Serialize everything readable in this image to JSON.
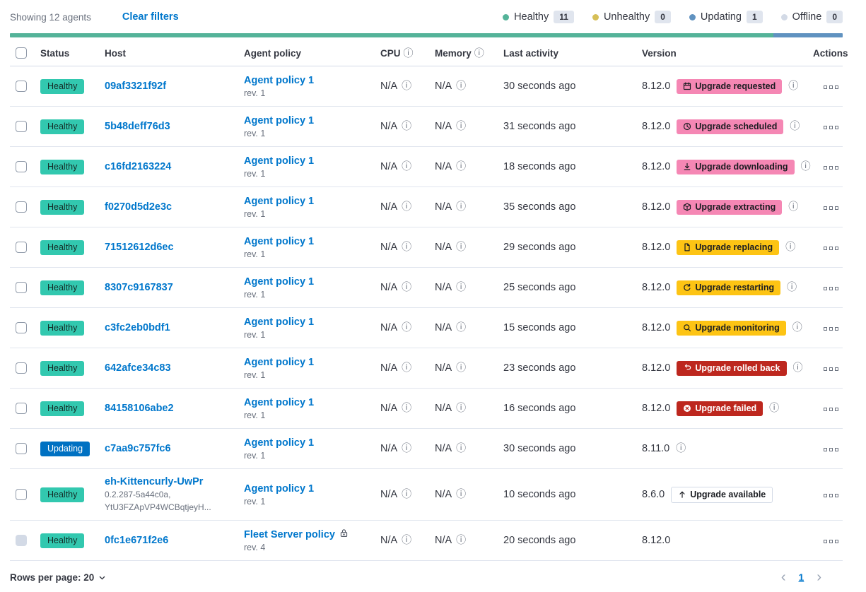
{
  "topbar": {
    "showing": "Showing 12 agents",
    "clear_filters": "Clear filters",
    "legend": [
      {
        "label": "Healthy",
        "count": "11",
        "color": "#54B399"
      },
      {
        "label": "Unhealthy",
        "count": "0",
        "color": "#D6BF57"
      },
      {
        "label": "Updating",
        "count": "1",
        "color": "#6092C0"
      },
      {
        "label": "Offline",
        "count": "0",
        "color": "#D3DAE6"
      }
    ]
  },
  "progress": {
    "segments": [
      {
        "name": "healthy",
        "color": "#54B399",
        "pct": 91.7
      },
      {
        "name": "updating",
        "color": "#6092C0",
        "pct": 8.3
      }
    ]
  },
  "table": {
    "columns": [
      {
        "label": "",
        "name": "select-all"
      },
      {
        "label": "Status",
        "name": "status"
      },
      {
        "label": "Host",
        "name": "host"
      },
      {
        "label": "Agent policy",
        "name": "agent-policy"
      },
      {
        "label": "CPU",
        "name": "cpu",
        "info": true
      },
      {
        "label": "Memory",
        "name": "memory",
        "info": true
      },
      {
        "label": "Last activity",
        "name": "last-activity"
      },
      {
        "label": "Version",
        "name": "version"
      },
      {
        "label": "Actions",
        "name": "actions",
        "align": "right"
      }
    ],
    "rows": [
      {
        "checkbox": {
          "disabled": false
        },
        "status": {
          "label": "Healthy",
          "style": "healthy"
        },
        "host": {
          "text": "09af3321f92f",
          "sub": []
        },
        "policy": {
          "name": "Agent policy 1",
          "rev": "rev. 1",
          "lock": false
        },
        "cpu": "N/A",
        "memory": "N/A",
        "last_activity": "30 seconds ago",
        "version": "8.12.0",
        "upgrade": {
          "label": "Upgrade requested",
          "icon": "calendar-icon",
          "style": "pink"
        },
        "version_info": true
      },
      {
        "checkbox": {
          "disabled": false
        },
        "status": {
          "label": "Healthy",
          "style": "healthy"
        },
        "host": {
          "text": "5b48deff76d3",
          "sub": []
        },
        "policy": {
          "name": "Agent policy 1",
          "rev": "rev. 1",
          "lock": false
        },
        "cpu": "N/A",
        "memory": "N/A",
        "last_activity": "31 seconds ago",
        "version": "8.12.0",
        "upgrade": {
          "label": "Upgrade scheduled",
          "icon": "clock-icon",
          "style": "pink"
        },
        "version_info": true
      },
      {
        "checkbox": {
          "disabled": false
        },
        "status": {
          "label": "Healthy",
          "style": "healthy"
        },
        "host": {
          "text": "c16fd2163224",
          "sub": []
        },
        "policy": {
          "name": "Agent policy 1",
          "rev": "rev. 1",
          "lock": false
        },
        "cpu": "N/A",
        "memory": "N/A",
        "last_activity": "18 seconds ago",
        "version": "8.12.0",
        "upgrade": {
          "label": "Upgrade downloading",
          "icon": "download-icon",
          "style": "pink"
        },
        "version_info": true
      },
      {
        "checkbox": {
          "disabled": false
        },
        "status": {
          "label": "Healthy",
          "style": "healthy"
        },
        "host": {
          "text": "f0270d5d2e3c",
          "sub": []
        },
        "policy": {
          "name": "Agent policy 1",
          "rev": "rev. 1",
          "lock": false
        },
        "cpu": "N/A",
        "memory": "N/A",
        "last_activity": "35 seconds ago",
        "version": "8.12.0",
        "upgrade": {
          "label": "Upgrade extracting",
          "icon": "package-icon",
          "style": "pink"
        },
        "version_info": true
      },
      {
        "checkbox": {
          "disabled": false
        },
        "status": {
          "label": "Healthy",
          "style": "healthy"
        },
        "host": {
          "text": "71512612d6ec",
          "sub": []
        },
        "policy": {
          "name": "Agent policy 1",
          "rev": "rev. 1",
          "lock": false
        },
        "cpu": "N/A",
        "memory": "N/A",
        "last_activity": "29 seconds ago",
        "version": "8.12.0",
        "upgrade": {
          "label": "Upgrade replacing",
          "icon": "document-icon",
          "style": "yellow"
        },
        "version_info": true
      },
      {
        "checkbox": {
          "disabled": false
        },
        "status": {
          "label": "Healthy",
          "style": "healthy"
        },
        "host": {
          "text": "8307c9167837",
          "sub": []
        },
        "policy": {
          "name": "Agent policy 1",
          "rev": "rev. 1",
          "lock": false
        },
        "cpu": "N/A",
        "memory": "N/A",
        "last_activity": "25 seconds ago",
        "version": "8.12.0",
        "upgrade": {
          "label": "Upgrade restarting",
          "icon": "refresh-icon",
          "style": "yellow"
        },
        "version_info": true
      },
      {
        "checkbox": {
          "disabled": false
        },
        "status": {
          "label": "Healthy",
          "style": "healthy"
        },
        "host": {
          "text": "c3fc2eb0bdf1",
          "sub": []
        },
        "policy": {
          "name": "Agent policy 1",
          "rev": "rev. 1",
          "lock": false
        },
        "cpu": "N/A",
        "memory": "N/A",
        "last_activity": "15 seconds ago",
        "version": "8.12.0",
        "upgrade": {
          "label": "Upgrade monitoring",
          "icon": "monitor-icon",
          "style": "yellow"
        },
        "version_info": true
      },
      {
        "checkbox": {
          "disabled": false
        },
        "status": {
          "label": "Healthy",
          "style": "healthy"
        },
        "host": {
          "text": "642afce34c83",
          "sub": []
        },
        "policy": {
          "name": "Agent policy 1",
          "rev": "rev. 1",
          "lock": false
        },
        "cpu": "N/A",
        "memory": "N/A",
        "last_activity": "23 seconds ago",
        "version": "8.12.0",
        "upgrade": {
          "label": "Upgrade rolled back",
          "icon": "rollback-icon",
          "style": "red"
        },
        "version_info": true
      },
      {
        "checkbox": {
          "disabled": false
        },
        "status": {
          "label": "Healthy",
          "style": "healthy"
        },
        "host": {
          "text": "84158106abe2",
          "sub": []
        },
        "policy": {
          "name": "Agent policy 1",
          "rev": "rev. 1",
          "lock": false
        },
        "cpu": "N/A",
        "memory": "N/A",
        "last_activity": "16 seconds ago",
        "version": "8.12.0",
        "upgrade": {
          "label": "Upgrade failed",
          "icon": "cross-circle-icon",
          "style": "red"
        },
        "version_info": true
      },
      {
        "checkbox": {
          "disabled": false
        },
        "status": {
          "label": "Updating",
          "style": "updating"
        },
        "host": {
          "text": "c7aa9c757fc6",
          "sub": []
        },
        "policy": {
          "name": "Agent policy 1",
          "rev": "rev. 1",
          "lock": false
        },
        "cpu": "N/A",
        "memory": "N/A",
        "last_activity": "30 seconds ago",
        "version": "8.11.0",
        "upgrade": null,
        "version_info": true
      },
      {
        "checkbox": {
          "disabled": false
        },
        "status": {
          "label": "Healthy",
          "style": "healthy"
        },
        "host": {
          "text": "eh-Kittencurly-UwPr",
          "sub": [
            "0.2.287-5a44c0a,",
            "YtU3FZApVP4WCBqtjeyH..."
          ]
        },
        "policy": {
          "name": "Agent policy 1",
          "rev": "rev. 1",
          "lock": false
        },
        "cpu": "N/A",
        "memory": "N/A",
        "last_activity": "10 seconds ago",
        "version": "8.6.0",
        "upgrade": {
          "label": "Upgrade available",
          "icon": "arrow-up-icon",
          "style": "hollow"
        },
        "version_info": false
      },
      {
        "checkbox": {
          "disabled": true
        },
        "status": {
          "label": "Healthy",
          "style": "healthy"
        },
        "host": {
          "text": "0fc1e671f2e6",
          "sub": []
        },
        "policy": {
          "name": "Fleet Server policy",
          "rev": "rev. 4",
          "lock": true
        },
        "cpu": "N/A",
        "memory": "N/A",
        "last_activity": "20 seconds ago",
        "version": "8.12.0",
        "upgrade": null,
        "version_info": false
      }
    ]
  },
  "footer": {
    "rows_per_page": "Rows per page: 20",
    "page": "1",
    "prev": "‹",
    "next": "›"
  },
  "icons": {
    "info": "ⓘ"
  }
}
